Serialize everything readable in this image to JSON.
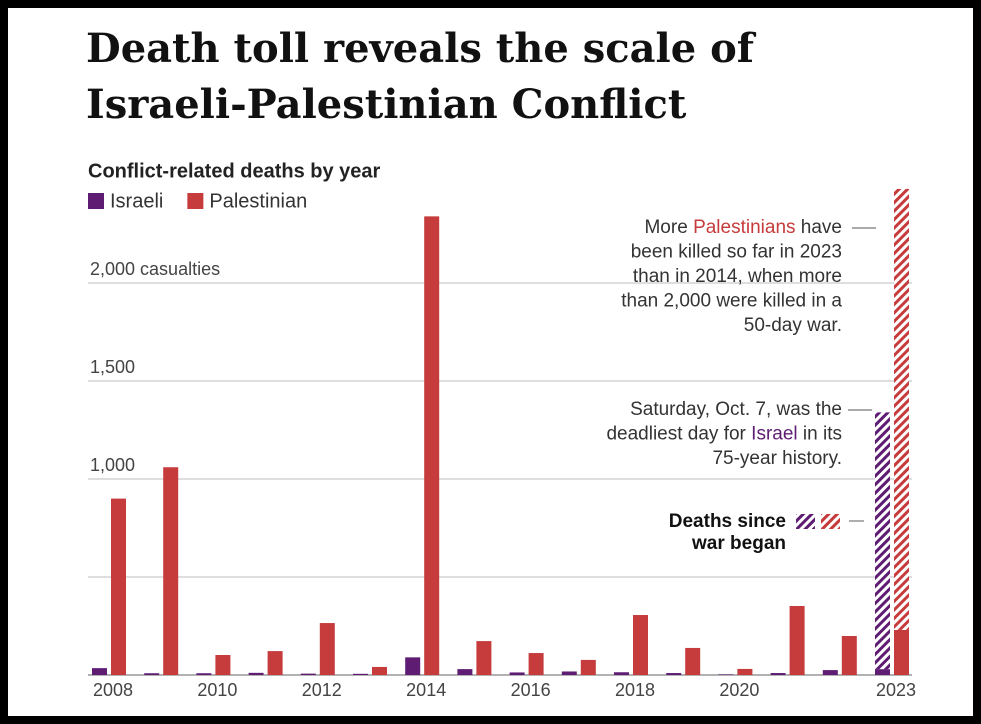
{
  "chart_data": {
    "type": "bar",
    "title": [
      "Death toll reveals the scale of",
      "Israeli-Palestinian Conflict"
    ],
    "subtitle": "Conflict-related deaths by year",
    "categories": [
      "2008",
      null,
      "2010",
      null,
      "2012",
      null,
      "2014",
      null,
      "2016",
      null,
      "2018",
      null,
      "2020",
      null,
      null,
      "2023"
    ],
    "series": [
      {
        "name": "Israeli",
        "color": "#5e1c72",
        "values": [
          35,
          9,
          9,
          11,
          7,
          6,
          90,
          30,
          13,
          18,
          14,
          10,
          3,
          10,
          25,
          30
        ]
      },
      {
        "name": "Palestinian",
        "color": "#c63b3b",
        "values": [
          900,
          1060,
          102,
          122,
          265,
          41,
          2340,
          173,
          112,
          77,
          306,
          138,
          31,
          352,
          199,
          230
        ]
      }
    ],
    "war_deaths": {
      "label": [
        "Deaths since",
        "war began"
      ],
      "values": [
        1310,
        2250
      ]
    },
    "ylim": [
      0,
      2500
    ],
    "yticks": [
      {
        "value": 500,
        "label": null
      },
      {
        "value": 1000,
        "label": "1,000"
      },
      {
        "value": 1500,
        "label": "1,500"
      },
      {
        "value": 2000,
        "label": "2,000 casualties"
      }
    ],
    "grid": true,
    "annotations": [
      {
        "lines": [
          {
            "text": "More Palestinians have",
            "highlight": "Palestinians",
            "color": "#c63b3b"
          },
          {
            "text": "been killed so far in 2023"
          },
          {
            "text": "than in 2014, when more"
          },
          {
            "text": "than 2,000 were killed in a"
          },
          {
            "text": "50-day war."
          }
        ]
      },
      {
        "lines": [
          {
            "text": "Saturday, Oct. 7, was the"
          },
          {
            "text": "deadliest day for Israel in its",
            "highlight": "Israel",
            "color": "#5e1c72"
          },
          {
            "text": "75-year history."
          }
        ]
      }
    ]
  }
}
